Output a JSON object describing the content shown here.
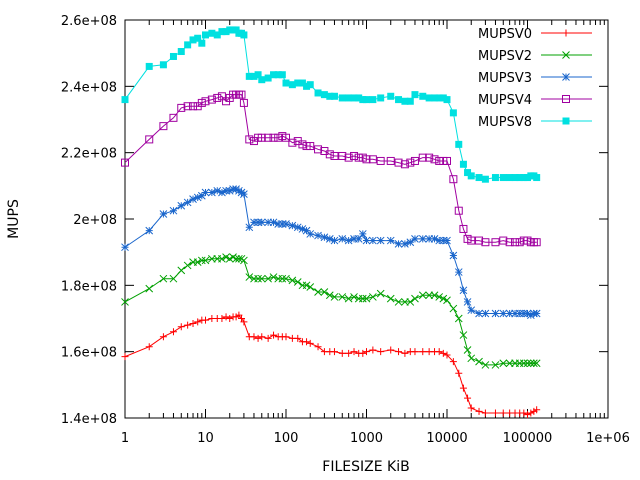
{
  "chart_data": {
    "type": "line",
    "xscale": "log",
    "xlabel": "FILESIZE KiB",
    "ylabel": "MUPS",
    "xlim": [
      1,
      1000000
    ],
    "ylim": [
      140000000,
      260000000
    ],
    "grid": false,
    "legend_position": "top-right",
    "x_ticks": [
      {
        "value": 1,
        "label": "1"
      },
      {
        "value": 10,
        "label": "10"
      },
      {
        "value": 100,
        "label": "100"
      },
      {
        "value": 1000,
        "label": "1000"
      },
      {
        "value": 10000,
        "label": "10000"
      },
      {
        "value": 100000,
        "label": "100000"
      },
      {
        "value": 1000000,
        "label": "1e+06"
      }
    ],
    "y_ticks": [
      {
        "value": 140000000,
        "label": "1.4e+08"
      },
      {
        "value": 160000000,
        "label": "1.6e+08"
      },
      {
        "value": 180000000,
        "label": "1.8e+08"
      },
      {
        "value": 200000000,
        "label": "2e+08"
      },
      {
        "value": 220000000,
        "label": "2.2e+08"
      },
      {
        "value": 240000000,
        "label": "2.4e+08"
      },
      {
        "value": 260000000,
        "label": "2.6e+08"
      }
    ],
    "x": [
      1,
      2,
      3,
      4,
      5,
      6,
      7,
      8,
      9,
      10,
      12,
      14,
      16,
      18,
      20,
      22,
      24,
      26,
      28,
      30,
      35,
      40,
      45,
      50,
      60,
      70,
      80,
      90,
      100,
      120,
      140,
      160,
      180,
      200,
      250,
      300,
      350,
      400,
      500,
      600,
      700,
      800,
      900,
      1000,
      1200,
      1500,
      2000,
      2500,
      3000,
      3500,
      4000,
      5000,
      6000,
      7000,
      8000,
      9000,
      10000,
      12000,
      14000,
      16000,
      18000,
      20000,
      25000,
      30000,
      40000,
      50000,
      60000,
      70000,
      80000,
      90000,
      100000,
      110000,
      120000,
      130000
    ],
    "series": [
      {
        "name": "MUPSV0",
        "color": "#ff0000",
        "marker": "plus",
        "values": [
          158.5,
          161.5,
          164.5,
          166,
          167.5,
          168,
          168.5,
          169,
          169.5,
          169.5,
          170,
          170,
          170,
          170.5,
          170,
          170.5,
          170.5,
          171,
          170,
          169,
          164.5,
          164.5,
          164,
          164.5,
          164,
          165,
          164.5,
          164.5,
          164.5,
          164,
          164,
          163,
          163,
          162.5,
          161.5,
          160,
          160,
          160,
          159.5,
          159.5,
          160,
          159.5,
          159.5,
          160,
          160.5,
          160,
          160.5,
          160,
          159.5,
          160,
          160,
          160,
          160,
          160,
          160,
          159.5,
          159,
          157,
          153.5,
          149,
          146,
          143,
          142,
          141.5,
          141.5,
          141.5,
          141.5,
          141.5,
          141.5,
          141.5,
          141,
          141.5,
          142,
          142.5
        ]
      },
      {
        "name": "MUPSV2",
        "color": "#00a000",
        "marker": "cross",
        "values": [
          175,
          179,
          182,
          182,
          184.5,
          186,
          187,
          187,
          187.5,
          187.5,
          188,
          188,
          188,
          188.5,
          188,
          188.5,
          188,
          188,
          188,
          187.5,
          182.5,
          182,
          182,
          182,
          182,
          182.5,
          182,
          182,
          182,
          181.5,
          181,
          180,
          180,
          179.5,
          178,
          178,
          177,
          176.5,
          176.5,
          176,
          176.5,
          176,
          176,
          176,
          176.5,
          177.5,
          176,
          175,
          175,
          175,
          176,
          177,
          177,
          177,
          176.5,
          176,
          175.5,
          173,
          170,
          165,
          160.5,
          158,
          157,
          156,
          156,
          156.5,
          156.5,
          156.5,
          156.5,
          156.5,
          156.5,
          156.5,
          156.5,
          156.5
        ]
      },
      {
        "name": "MUPSV3",
        "color": "#1a66cc",
        "marker": "star",
        "values": [
          191.5,
          196.5,
          201.5,
          202.5,
          204,
          205,
          206,
          206.5,
          207,
          208,
          208,
          208.5,
          208,
          208.5,
          208.5,
          209,
          209,
          208.5,
          208,
          207.5,
          197.5,
          199,
          199,
          199,
          199,
          199,
          198.5,
          198.5,
          198.5,
          198,
          197.5,
          197,
          196.5,
          195.5,
          195,
          194.5,
          194,
          193.5,
          194,
          193.5,
          194,
          194,
          195.5,
          193.5,
          193.5,
          193.5,
          193.5,
          192.5,
          192.5,
          193,
          194,
          194,
          194,
          194,
          193.5,
          193.5,
          193.5,
          189,
          184,
          178.5,
          175,
          172.5,
          171.5,
          171.5,
          171.5,
          171.5,
          171.5,
          171.5,
          171.5,
          171.5,
          171.5,
          171,
          171.5,
          171.5
        ]
      },
      {
        "name": "MUPSV4",
        "color": "#a000a0",
        "marker": "square-open",
        "values": [
          217,
          224,
          228,
          230.5,
          233.5,
          234,
          234,
          234,
          235,
          235.5,
          236,
          236.5,
          237,
          235.5,
          236.5,
          237.5,
          237.5,
          237.5,
          237.5,
          235,
          224,
          223.5,
          224.5,
          224.5,
          224.5,
          224.5,
          224.5,
          225,
          224.5,
          223,
          223.5,
          222.5,
          222,
          222,
          221,
          220.5,
          219.5,
          219,
          219,
          218.5,
          219,
          218.5,
          218.5,
          218,
          218,
          217.5,
          217.5,
          217,
          216.5,
          217,
          217.5,
          218.5,
          218.5,
          218,
          217.5,
          217.5,
          217.5,
          212,
          202.5,
          197,
          194,
          193.5,
          193.5,
          193,
          193,
          193.5,
          193,
          193,
          193,
          193.5,
          193.5,
          193,
          193,
          193
        ]
      },
      {
        "name": "MUPSV8",
        "color": "#00e0e0",
        "marker": "square-filled",
        "values": [
          236,
          246,
          246.5,
          249,
          250.5,
          252.5,
          254,
          254.5,
          253,
          255.5,
          256,
          255.5,
          256.5,
          256.5,
          257,
          257,
          257,
          256,
          256,
          255.5,
          243,
          243,
          243.5,
          242,
          242.5,
          243.5,
          243.5,
          243.5,
          241,
          240.5,
          241,
          241,
          240,
          240.5,
          238,
          237.5,
          237,
          237,
          236.5,
          236.5,
          236.5,
          236.5,
          236,
          236,
          236,
          236.5,
          237,
          236,
          235.5,
          235.5,
          237.5,
          237,
          236.5,
          236.5,
          236.5,
          236.5,
          236,
          232,
          222.5,
          216.5,
          214,
          213,
          212.5,
          212,
          212.5,
          212.5,
          212.5,
          212.5,
          212.5,
          212.5,
          212.5,
          213,
          213,
          212.5
        ]
      }
    ]
  }
}
